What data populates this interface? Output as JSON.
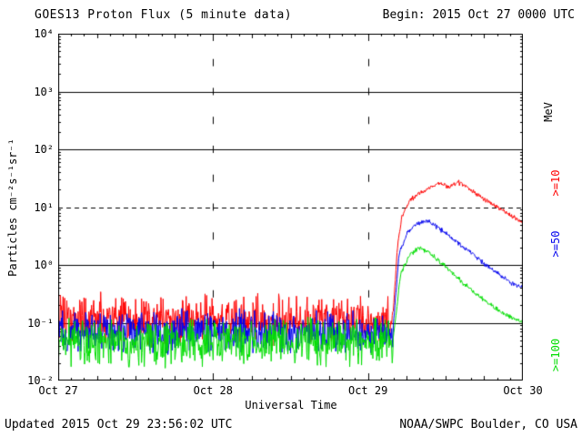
{
  "header": {
    "title": "GOES13 Proton Flux (5 minute data)",
    "begin": "Begin: 2015 Oct 27 0000 UTC"
  },
  "footer": {
    "updated": "Updated 2015 Oct 29 23:56:02 UTC",
    "source": "NOAA/SWPC Boulder, CO USA"
  },
  "chart_data": {
    "type": "line",
    "title": "GOES13 Proton Flux (5 minute data)",
    "xlabel": "Universal Time",
    "ylabel": "Particles cm⁻²s⁻¹sr⁻¹",
    "x_tick_labels": [
      "Oct 27",
      "Oct 28",
      "Oct 29",
      "Oct 30"
    ],
    "x_range_days": [
      0,
      3
    ],
    "y_tick_labels": [
      "10⁴",
      "10³",
      "10²",
      "10¹",
      "10⁰",
      "10⁻¹",
      "10⁻²"
    ],
    "y_log_range": [
      -2,
      4
    ],
    "y_scale": "log",
    "grid": "solid horizontal line at each decade, dashed alert threshold",
    "threshold": 10,
    "cadence_minutes": 5,
    "legend_position": "right-vertical",
    "right_labels": [
      {
        "text": "MeV",
        "color": "#000000"
      },
      {
        "text": ">=10",
        "color": "#ff0000"
      },
      {
        "text": ">=50",
        "color": "#0000ee"
      },
      {
        "text": ">=100",
        "color": "#00dd00"
      }
    ],
    "series": [
      {
        "name": ">=10 MeV",
        "color": "#ff0000",
        "baseline_flux": 0.11,
        "baseline_noise_log": 0.28,
        "event_profile": [
          [
            2.16,
            0.12
          ],
          [
            2.19,
            2
          ],
          [
            2.22,
            7
          ],
          [
            2.27,
            13
          ],
          [
            2.33,
            17
          ],
          [
            2.4,
            22
          ],
          [
            2.46,
            26
          ],
          [
            2.52,
            22
          ],
          [
            2.58,
            27
          ],
          [
            2.63,
            24
          ],
          [
            2.7,
            17
          ],
          [
            2.78,
            12
          ],
          [
            2.86,
            9
          ],
          [
            2.93,
            7
          ],
          [
            3.0,
            5.5
          ]
        ]
      },
      {
        "name": ">=50 MeV",
        "color": "#0000ee",
        "baseline_flux": 0.07,
        "baseline_noise_log": 0.24,
        "event_profile": [
          [
            2.16,
            0.07
          ],
          [
            2.2,
            1.5
          ],
          [
            2.25,
            3.5
          ],
          [
            2.31,
            5.2
          ],
          [
            2.38,
            5.8
          ],
          [
            2.45,
            4.5
          ],
          [
            2.52,
            3.2
          ],
          [
            2.6,
            2.2
          ],
          [
            2.68,
            1.5
          ],
          [
            2.76,
            1.0
          ],
          [
            2.84,
            0.7
          ],
          [
            2.92,
            0.5
          ],
          [
            3.0,
            0.4
          ]
        ]
      },
      {
        "name": ">=100 MeV",
        "color": "#00dd00",
        "baseline_flux": 0.045,
        "baseline_noise_log": 0.26,
        "event_profile": [
          [
            2.16,
            0.045
          ],
          [
            2.21,
            0.7
          ],
          [
            2.27,
            1.5
          ],
          [
            2.33,
            2.0
          ],
          [
            2.4,
            1.6
          ],
          [
            2.47,
            1.1
          ],
          [
            2.55,
            0.7
          ],
          [
            2.63,
            0.45
          ],
          [
            2.72,
            0.28
          ],
          [
            2.82,
            0.18
          ],
          [
            2.91,
            0.13
          ],
          [
            3.0,
            0.1
          ]
        ]
      }
    ]
  }
}
